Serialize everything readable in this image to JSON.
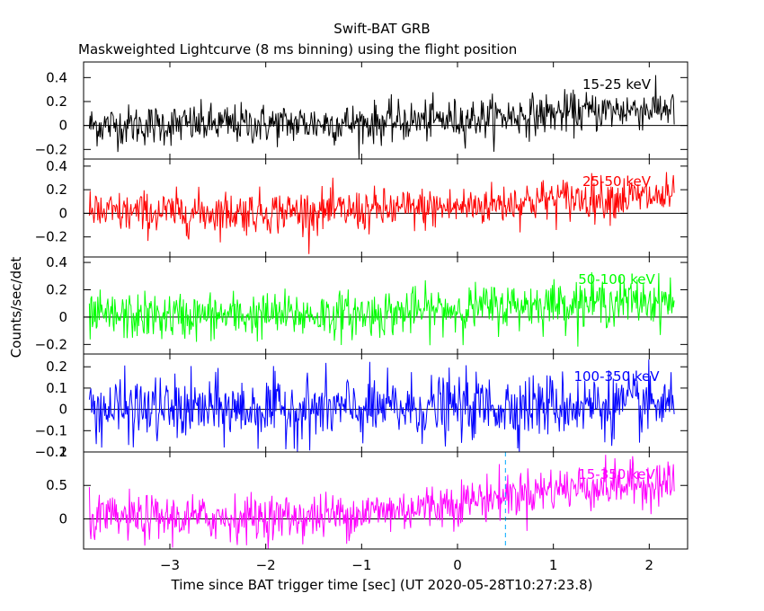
{
  "header": {
    "title": "Swift-BAT GRB",
    "subtitle": "Maskweighted Lightcurve (8 ms binning) using the flight position"
  },
  "axes": {
    "xlabel": "Time since BAT trigger time [sec] (UT 2020-05-28T10:27:23.8)",
    "ylabel": "Counts/sec/det"
  },
  "chart_data": [
    {
      "type": "line",
      "band": "15-25 keV",
      "color": "#000000",
      "x_range": [
        -3.84,
        2.26
      ],
      "xlim": [
        -3.9,
        2.4
      ],
      "ylim": [
        -0.28,
        0.53
      ],
      "yticks": [
        -0.2,
        0,
        0.2,
        0.4
      ],
      "ytick_labels": [
        "−0.2",
        "0",
        "0.2",
        "0.4"
      ],
      "trend": {
        "times": [
          -3.84,
          -1.0,
          0.0,
          1.0,
          2.26
        ],
        "levels": [
          0.0,
          0.02,
          0.05,
          0.1,
          0.15
        ]
      },
      "noise_sigma": 0.085
    },
    {
      "type": "line",
      "band": "25-50 keV",
      "color": "#ff0000",
      "x_range": [
        -3.84,
        2.26
      ],
      "xlim": [
        -3.9,
        2.4
      ],
      "ylim": [
        -0.37,
        0.46
      ],
      "yticks": [
        -0.2,
        0,
        0.2,
        0.4
      ],
      "ytick_labels": [
        "−0.2",
        "0",
        "0.2",
        "0.4"
      ],
      "trend": {
        "times": [
          -3.84,
          -1.0,
          0.0,
          1.0,
          2.26
        ],
        "levels": [
          0.0,
          0.02,
          0.05,
          0.12,
          0.14
        ]
      },
      "noise_sigma": 0.09
    },
    {
      "type": "line",
      "band": "50-100 keV",
      "color": "#00ff00",
      "x_range": [
        -3.84,
        2.26
      ],
      "xlim": [
        -3.9,
        2.4
      ],
      "ylim": [
        -0.27,
        0.44
      ],
      "yticks": [
        -0.2,
        0,
        0.2,
        0.4
      ],
      "ytick_labels": [
        "−0.2",
        "0",
        "0.2",
        "0.4"
      ],
      "trend": {
        "times": [
          -3.84,
          -1.0,
          0.0,
          1.0,
          2.26
        ],
        "levels": [
          0.0,
          0.02,
          0.06,
          0.1,
          0.12
        ]
      },
      "noise_sigma": 0.085
    },
    {
      "type": "line",
      "band": "100-350 keV",
      "color": "#0000ff",
      "x_range": [
        -3.84,
        2.26
      ],
      "xlim": [
        -3.9,
        2.4
      ],
      "ylim": [
        -0.2,
        0.26
      ],
      "yticks": [
        -0.2,
        -0.1,
        0,
        0.1,
        0.2
      ],
      "ytick_labels": [
        "−0.2",
        "−0.1",
        "0",
        "0.1",
        "0.2"
      ],
      "trend": {
        "times": [
          -3.84,
          -1.0,
          0.0,
          1.0,
          2.26
        ],
        "levels": [
          0.0,
          0.0,
          0.01,
          0.02,
          0.02
        ]
      },
      "noise_sigma": 0.075
    },
    {
      "type": "line",
      "band": "15-350 keV",
      "color": "#ff00ff",
      "x_range": [
        -3.84,
        2.26
      ],
      "xlim": [
        -3.9,
        2.4
      ],
      "ylim": [
        -0.45,
        1.0
      ],
      "yticks": [
        0,
        0.5,
        1
      ],
      "ytick_labels": [
        "0",
        "0.5",
        "1"
      ],
      "trend": {
        "times": [
          -3.84,
          -1.5,
          -0.5,
          0.5,
          1.0,
          2.26
        ],
        "levels": [
          0.0,
          0.03,
          0.15,
          0.35,
          0.45,
          0.55
        ]
      },
      "noise_sigma": 0.17,
      "markers": {
        "dashed_vertical_x": [
          0.5
        ],
        "dashed_horizontal_y": [
          0
        ]
      }
    }
  ],
  "xaxis": {
    "ticks": [
      -3,
      -2,
      -1,
      0,
      1,
      2
    ],
    "tick_labels": [
      "−3",
      "−2",
      "−1",
      "0",
      "1",
      "2"
    ]
  }
}
